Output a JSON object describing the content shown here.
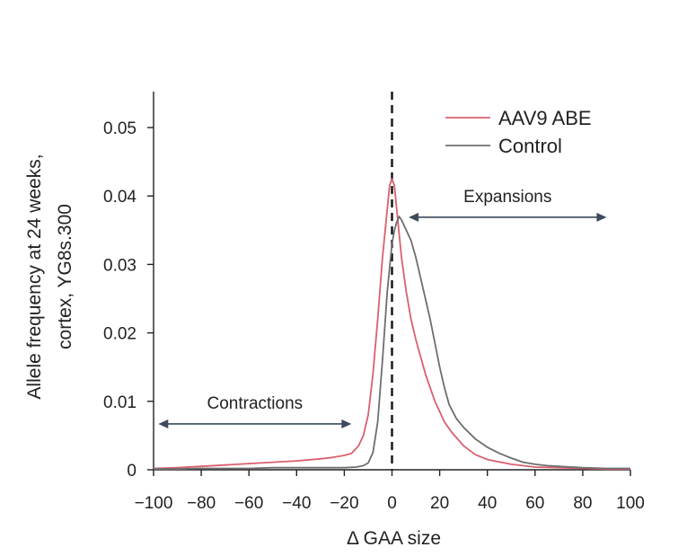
{
  "chart_data": {
    "type": "line",
    "title": "",
    "xlabel": "Δ GAA size",
    "ylabel_line1": "Allele frequency at 24 weeks,",
    "ylabel_line2": "cortex, YG8s.300",
    "xlim": [
      -100,
      100
    ],
    "ylim": [
      0,
      0.05
    ],
    "xticks": [
      -100,
      -80,
      -60,
      -40,
      -20,
      0,
      20,
      40,
      60,
      80,
      100
    ],
    "xtick_labels": [
      "−100",
      "−80",
      "−60",
      "−40",
      "−20",
      "0",
      "20",
      "40",
      "60",
      "80",
      "100"
    ],
    "yticks": [
      0,
      0.01,
      0.02,
      0.03,
      0.04,
      0.05
    ],
    "ytick_labels": [
      "0",
      "0.01",
      "0.02",
      "0.03",
      "0.04",
      "0.05"
    ],
    "grid": false,
    "legend_position": "top-right",
    "reference_line_x": 0,
    "series": [
      {
        "name": "AAV9 ABE",
        "color": "#d9606e",
        "points": [
          [
            -100,
            0.0002
          ],
          [
            -90,
            0.0003
          ],
          [
            -80,
            0.0005
          ],
          [
            -70,
            0.0007
          ],
          [
            -60,
            0.0009
          ],
          [
            -50,
            0.0011
          ],
          [
            -40,
            0.0013
          ],
          [
            -30,
            0.0016
          ],
          [
            -25,
            0.0018
          ],
          [
            -20,
            0.0021
          ],
          [
            -17,
            0.0024
          ],
          [
            -14,
            0.0035
          ],
          [
            -12,
            0.005
          ],
          [
            -10,
            0.008
          ],
          [
            -8,
            0.014
          ],
          [
            -6,
            0.022
          ],
          [
            -4,
            0.031
          ],
          [
            -2,
            0.038
          ],
          [
            -1,
            0.0415
          ],
          [
            0,
            0.0425
          ],
          [
            1,
            0.0415
          ],
          [
            2,
            0.038
          ],
          [
            4,
            0.031
          ],
          [
            6,
            0.026
          ],
          [
            8,
            0.022
          ],
          [
            10,
            0.019
          ],
          [
            12,
            0.0165
          ],
          [
            14,
            0.014
          ],
          [
            16,
            0.012
          ],
          [
            18,
            0.01
          ],
          [
            20,
            0.0085
          ],
          [
            22,
            0.007
          ],
          [
            25,
            0.0055
          ],
          [
            30,
            0.0035
          ],
          [
            35,
            0.0022
          ],
          [
            40,
            0.0015
          ],
          [
            50,
            0.0008
          ],
          [
            60,
            0.0004
          ],
          [
            70,
            0.0003
          ],
          [
            80,
            0.0002
          ],
          [
            90,
            0.0001
          ],
          [
            100,
            0.0001
          ]
        ]
      },
      {
        "name": "Control",
        "color": "#6e6e6e",
        "points": [
          [
            -100,
            0.0001
          ],
          [
            -90,
            0.0001
          ],
          [
            -80,
            0.0002
          ],
          [
            -70,
            0.0002
          ],
          [
            -60,
            0.0002
          ],
          [
            -50,
            0.0003
          ],
          [
            -40,
            0.0003
          ],
          [
            -30,
            0.0003
          ],
          [
            -20,
            0.0003
          ],
          [
            -15,
            0.0004
          ],
          [
            -12,
            0.0006
          ],
          [
            -10,
            0.001
          ],
          [
            -8,
            0.0025
          ],
          [
            -6,
            0.007
          ],
          [
            -4,
            0.016
          ],
          [
            -2,
            0.026
          ],
          [
            0,
            0.033
          ],
          [
            1,
            0.035
          ],
          [
            2,
            0.0362
          ],
          [
            3,
            0.037
          ],
          [
            4,
            0.0365
          ],
          [
            6,
            0.035
          ],
          [
            8,
            0.0335
          ],
          [
            10,
            0.031
          ],
          [
            12,
            0.028
          ],
          [
            14,
            0.025
          ],
          [
            16,
            0.022
          ],
          [
            18,
            0.0185
          ],
          [
            20,
            0.015
          ],
          [
            22,
            0.012
          ],
          [
            24,
            0.0095
          ],
          [
            27,
            0.0075
          ],
          [
            30,
            0.0062
          ],
          [
            35,
            0.0045
          ],
          [
            40,
            0.0033
          ],
          [
            45,
            0.0024
          ],
          [
            50,
            0.0017
          ],
          [
            55,
            0.0011
          ],
          [
            60,
            0.0008
          ],
          [
            65,
            0.0006
          ],
          [
            70,
            0.0005
          ],
          [
            80,
            0.0003
          ],
          [
            90,
            0.0002
          ],
          [
            100,
            0.0002
          ]
        ]
      }
    ],
    "annotations": [
      {
        "text": "Contractions",
        "arrow_from": -98,
        "arrow_to": -17,
        "y": 0.0067,
        "label_y": 0.0089
      },
      {
        "text": "Expansions",
        "arrow_from": 7,
        "arrow_to": 90,
        "y": 0.0369,
        "label_y": 0.0391
      }
    ],
    "annotation_color": "#3c4a5c"
  }
}
